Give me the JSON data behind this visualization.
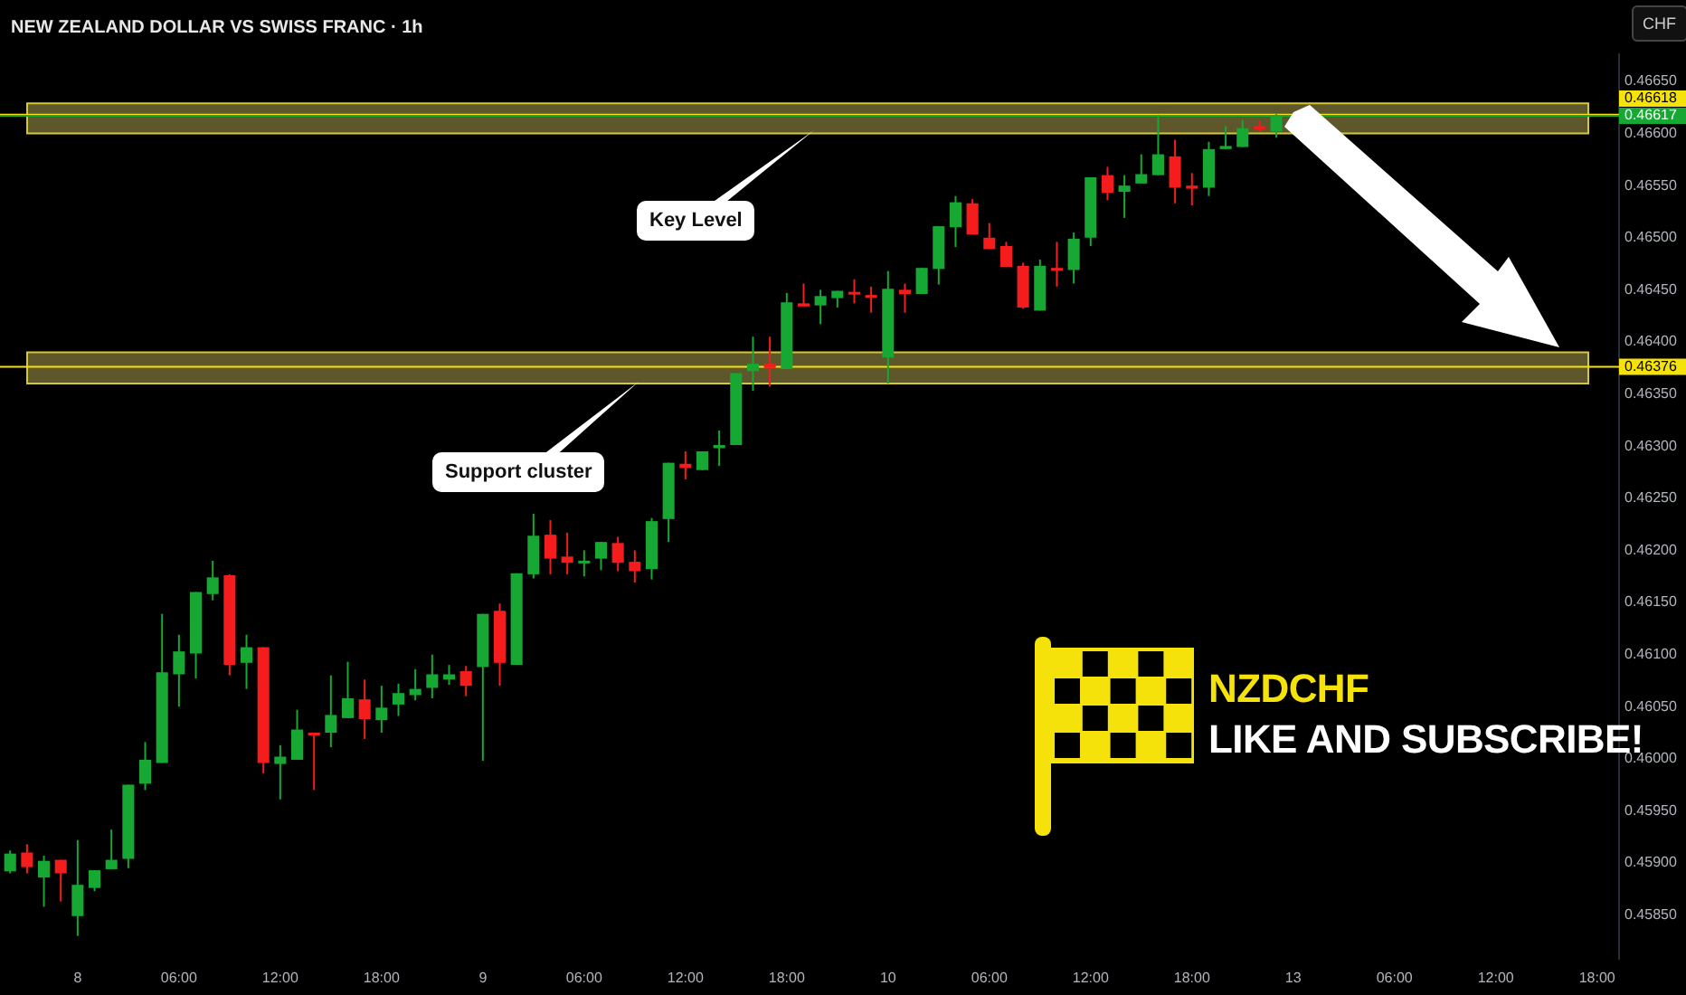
{
  "chart_data": {
    "type": "candlestick",
    "title": "NEW ZEALAND DOLLAR VS SWISS FRANC · 1h",
    "categories": [
      null,
      null,
      null,
      null,
      "8",
      null,
      null,
      null,
      null,
      null,
      "06:00",
      null,
      null,
      null,
      null,
      null,
      "12:00",
      null,
      null,
      null,
      null,
      null,
      "18:00",
      null,
      null,
      null,
      null,
      null,
      "9",
      null,
      null,
      null,
      null,
      null,
      "06:00",
      null,
      null,
      null,
      null,
      null,
      "12:00",
      null,
      null,
      null,
      null,
      null,
      "18:00",
      null,
      null,
      null,
      null,
      null,
      "10",
      null,
      null,
      null,
      null,
      null,
      "06:00",
      null,
      null,
      null,
      null,
      null,
      "12:00",
      null,
      null,
      null,
      null,
      null,
      "18:00",
      null,
      null,
      null,
      null,
      null,
      "13",
      null,
      null,
      null,
      null,
      null,
      "06:00",
      null,
      null,
      null,
      null,
      null,
      "12:00",
      null,
      null,
      null,
      null,
      null,
      "18:00",
      null
    ],
    "ohlc": [
      [
        0.45892,
        0.45912,
        0.4589,
        0.45909
      ],
      [
        0.4591,
        0.45918,
        0.4589,
        0.45896
      ],
      [
        0.45886,
        0.45907,
        0.45858,
        0.45902
      ],
      [
        0.45903,
        0.45903,
        0.45863,
        0.4589
      ],
      [
        0.45849,
        0.45922,
        0.4583,
        0.45879
      ],
      [
        0.45876,
        0.45893,
        0.45873,
        0.45893
      ],
      [
        0.45894,
        0.45932,
        0.45894,
        0.45903
      ],
      [
        0.45904,
        0.45975,
        0.45895,
        0.45975
      ],
      [
        0.45976,
        0.46016,
        0.4597,
        0.45999
      ],
      [
        0.45996,
        0.46139,
        0.45996,
        0.46083
      ],
      [
        0.46081,
        0.46119,
        0.4605,
        0.46103
      ],
      [
        0.46101,
        0.4616,
        0.46077,
        0.4616
      ],
      [
        0.46158,
        0.4619,
        0.46152,
        0.46174
      ],
      [
        0.46176,
        0.46177,
        0.4608,
        0.4609
      ],
      [
        0.46092,
        0.46119,
        0.46067,
        0.46107
      ],
      [
        0.46107,
        0.46107,
        0.45986,
        0.45996
      ],
      [
        0.45995,
        0.46013,
        0.45961,
        0.46002
      ],
      [
        0.45999,
        0.46047,
        0.45999,
        0.46028
      ],
      [
        0.46025,
        0.46025,
        0.4597,
        0.46024
      ],
      [
        0.46025,
        0.4608,
        0.46011,
        0.46042
      ],
      [
        0.46039,
        0.46093,
        0.46039,
        0.46058
      ],
      [
        0.46057,
        0.46076,
        0.46019,
        0.46038
      ],
      [
        0.46037,
        0.4607,
        0.46025,
        0.46049
      ],
      [
        0.46052,
        0.46072,
        0.46041,
        0.46063
      ],
      [
        0.46061,
        0.46086,
        0.46056,
        0.46067
      ],
      [
        0.46068,
        0.461,
        0.46058,
        0.46081
      ],
      [
        0.46076,
        0.4609,
        0.46071,
        0.46081
      ],
      [
        0.46084,
        0.46089,
        0.4606,
        0.4607
      ],
      [
        0.46088,
        0.46139,
        0.45998,
        0.46139
      ],
      [
        0.46142,
        0.46149,
        0.4607,
        0.46092
      ],
      [
        0.4609,
        0.46178,
        0.4609,
        0.46178
      ],
      [
        0.46177,
        0.46235,
        0.46173,
        0.46214
      ],
      [
        0.46215,
        0.46229,
        0.46177,
        0.46192
      ],
      [
        0.46194,
        0.46217,
        0.46177,
        0.46188
      ],
      [
        0.46188,
        0.462,
        0.46175,
        0.4619
      ],
      [
        0.46192,
        0.46208,
        0.46181,
        0.46208
      ],
      [
        0.46207,
        0.46213,
        0.4618,
        0.46188
      ],
      [
        0.46189,
        0.462,
        0.46169,
        0.4618
      ],
      [
        0.46182,
        0.46231,
        0.46172,
        0.46228
      ],
      [
        0.4623,
        0.46284,
        0.46208,
        0.46284
      ],
      [
        0.46283,
        0.46295,
        0.46268,
        0.46279
      ],
      [
        0.46277,
        0.46295,
        0.46277,
        0.46295
      ],
      [
        0.46298,
        0.46315,
        0.46281,
        0.46301
      ],
      [
        0.46301,
        0.4637,
        0.46301,
        0.4637
      ],
      [
        0.46372,
        0.46405,
        0.46353,
        0.46379
      ],
      [
        0.46379,
        0.46405,
        0.46357,
        0.46375
      ],
      [
        0.46374,
        0.46447,
        0.46374,
        0.46438
      ],
      [
        0.46437,
        0.46456,
        0.46434,
        0.46434
      ],
      [
        0.46435,
        0.4645,
        0.46417,
        0.46444
      ],
      [
        0.46442,
        0.46449,
        0.46433,
        0.46449
      ],
      [
        0.46448,
        0.4646,
        0.46437,
        0.46446
      ],
      [
        0.46445,
        0.46453,
        0.46428,
        0.46444
      ],
      [
        0.46385,
        0.46468,
        0.4636,
        0.46451
      ],
      [
        0.4645,
        0.46456,
        0.46428,
        0.46446
      ],
      [
        0.46446,
        0.46471,
        0.46446,
        0.46471
      ],
      [
        0.4647,
        0.46511,
        0.46455,
        0.46511
      ],
      [
        0.4651,
        0.4654,
        0.46491,
        0.46534
      ],
      [
        0.46533,
        0.46537,
        0.46503,
        0.46503
      ],
      [
        0.465,
        0.46514,
        0.46489,
        0.46489
      ],
      [
        0.46492,
        0.46496,
        0.46472,
        0.46472
      ],
      [
        0.46473,
        0.46476,
        0.46432,
        0.46433
      ],
      [
        0.4643,
        0.46479,
        0.4643,
        0.46473
      ],
      [
        0.46471,
        0.46496,
        0.46453,
        0.4647
      ],
      [
        0.46469,
        0.46505,
        0.46456,
        0.46499
      ],
      [
        0.465,
        0.46558,
        0.46492,
        0.46558
      ],
      [
        0.4656,
        0.46568,
        0.46536,
        0.46543
      ],
      [
        0.46544,
        0.4656,
        0.46519,
        0.4655
      ],
      [
        0.46552,
        0.4658,
        0.46552,
        0.46561
      ],
      [
        0.4656,
        0.46618,
        0.4656,
        0.4658
      ],
      [
        0.46578,
        0.46594,
        0.46533,
        0.46548
      ],
      [
        0.4655,
        0.46562,
        0.46531,
        0.46547
      ],
      [
        0.46548,
        0.46592,
        0.4654,
        0.46585
      ],
      [
        0.46585,
        0.46607,
        0.46585,
        0.46588
      ],
      [
        0.46587,
        0.46613,
        0.46587,
        0.46605
      ],
      [
        0.46607,
        0.46612,
        0.46602,
        0.46604
      ],
      [
        0.46602,
        0.46619,
        0.46596,
        0.46617
      ],
      null,
      null,
      null,
      null,
      null,
      null,
      null,
      null,
      null,
      null,
      null,
      null,
      null,
      null,
      null,
      null,
      null,
      null,
      null,
      null
    ],
    "colors": [
      "#16a832",
      "#f41c1c",
      "#16a832",
      "#f41c1c",
      "#16a832",
      "#16a832",
      "#16a832",
      "#16a832",
      "#16a832",
      "#16a832",
      "#16a832",
      "#16a832",
      "#16a832",
      "#f41c1c",
      "#16a832",
      "#f41c1c",
      "#16a832",
      "#16a832",
      "#f41c1c",
      "#16a832",
      "#16a832",
      "#f41c1c",
      "#16a832",
      "#16a832",
      "#16a832",
      "#16a832",
      "#16a832",
      "#f41c1c",
      "#16a832",
      "#f41c1c",
      "#16a832",
      "#16a832",
      "#f41c1c",
      "#f41c1c",
      "#16a832",
      "#16a832",
      "#f41c1c",
      "#f41c1c",
      "#16a832",
      "#16a832",
      "#f41c1c",
      "#16a832",
      "#16a832",
      "#16a832",
      "#16a832",
      "#f41c1c",
      "#16a832",
      "#f41c1c",
      "#16a832",
      "#16a832",
      "#f41c1c",
      "#f41c1c",
      "#16a832",
      "#f41c1c",
      "#16a832",
      "#16a832",
      "#16a832",
      "#f41c1c",
      "#f41c1c",
      "#f41c1c",
      "#f41c1c",
      "#16a832",
      "#f41c1c",
      "#16a832",
      "#16a832",
      "#f41c1c",
      "#16a832",
      "#16a832",
      "#16a832",
      "#f41c1c",
      "#f41c1c",
      "#16a832",
      "#16a832",
      "#16a832",
      "#f41c1c",
      "#16a832",
      null,
      null,
      null,
      null,
      null,
      null,
      null,
      null,
      null,
      null,
      null,
      null,
      null,
      null,
      null,
      null,
      null,
      null,
      null,
      null
    ],
    "ylim": [
      0.45808,
      0.46676
    ],
    "yticks": [
      {
        "value": 0.4585,
        "label": "0.45850"
      },
      {
        "value": 0.459,
        "label": "0.45900"
      },
      {
        "value": 0.4595,
        "label": "0.45950"
      },
      {
        "value": 0.46,
        "label": "0.46000"
      },
      {
        "value": 0.4605,
        "label": "0.46050"
      },
      {
        "value": 0.461,
        "label": "0.46100"
      },
      {
        "value": 0.4615,
        "label": "0.46150"
      },
      {
        "value": 0.462,
        "label": "0.46200"
      },
      {
        "value": 0.4625,
        "label": "0.46250"
      },
      {
        "value": 0.463,
        "label": "0.46300"
      },
      {
        "value": 0.4635,
        "label": "0.46350"
      },
      {
        "value": 0.464,
        "label": "0.46400"
      },
      {
        "value": 0.4645,
        "label": "0.46450"
      },
      {
        "value": 0.465,
        "label": "0.46500"
      },
      {
        "value": 0.4655,
        "label": "0.46550"
      },
      {
        "value": 0.466,
        "label": "0.46600"
      },
      {
        "value": 0.4665,
        "label": "0.46650"
      }
    ],
    "bands": [
      {
        "axis": "y",
        "from": 0.466,
        "to": 0.46629,
        "color": "#6e6634"
      },
      {
        "axis": "y",
        "from": 0.4636,
        "to": 0.4639,
        "color": "#6e6634"
      }
    ],
    "ref_lines": [
      {
        "axis": "y",
        "value": 0.46618,
        "label": "0.46618",
        "color": "#f5e20a"
      },
      {
        "axis": "y",
        "value": 0.46617,
        "label": "0.46617",
        "color": "#16a832"
      },
      {
        "axis": "y",
        "value": 0.46376,
        "label": "0.46376",
        "color": "#f5e20a"
      }
    ],
    "annotations": [
      "Key Level",
      "Support cluster",
      "NZDCHF",
      "LIKE AND SUBSCRIBE!",
      "CHF"
    ],
    "grid": false,
    "legend": false
  }
}
